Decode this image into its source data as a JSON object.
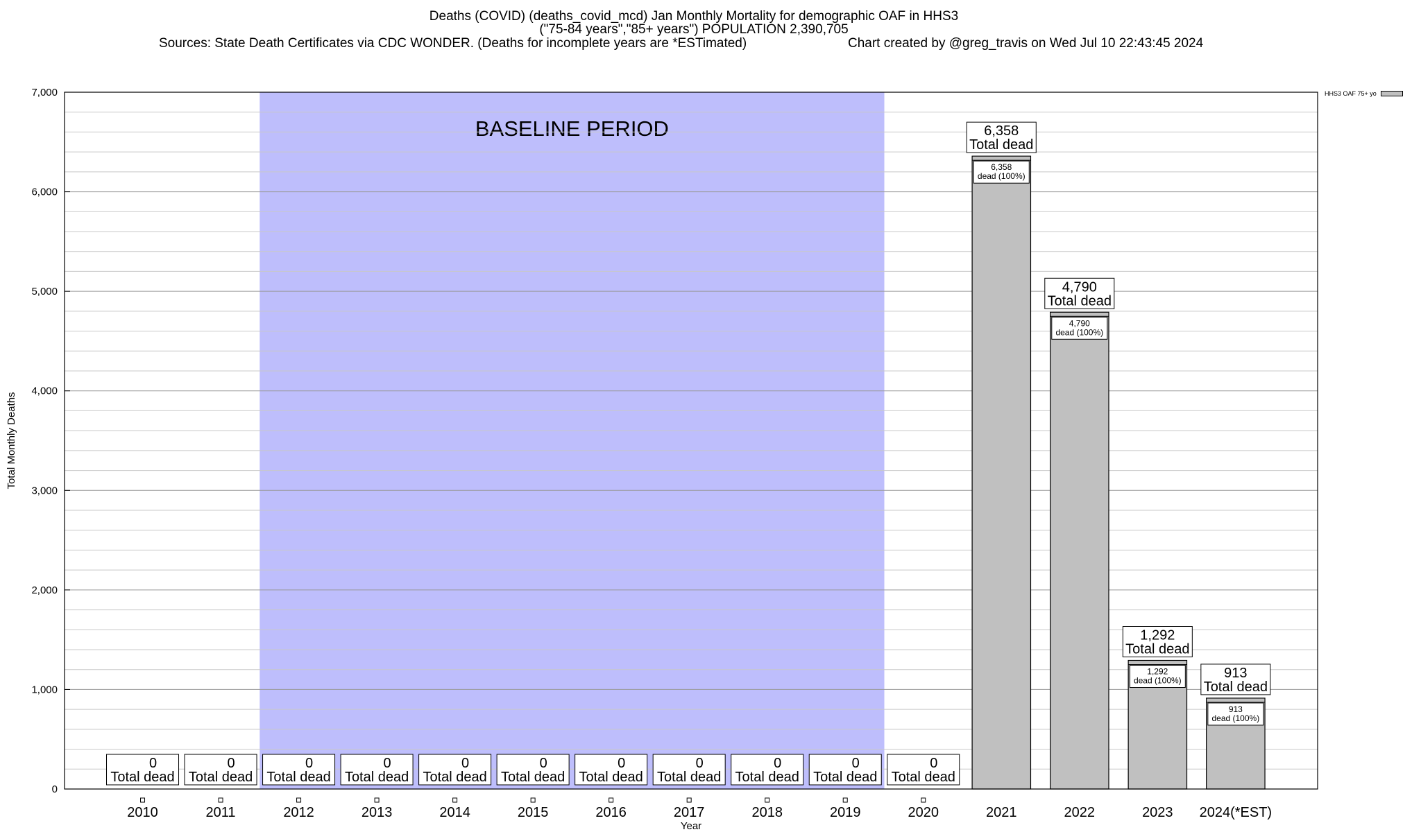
{
  "chart_data": {
    "type": "bar",
    "title_line1": "Deaths (COVID) (deaths_covid_mcd) Jan Monthly Mortality for demographic OAF in HHS3",
    "title_line2": "(\"75-84 years\",\"85+ years\") POPULATION 2,390,705",
    "sources": "Sources: State Death Certificates via CDC WONDER. (Deaths for incomplete years are *ESTimated)",
    "credit": "Chart created by @greg_travis on Wed Jul 10 22:43:45 2024",
    "xlabel": "Year",
    "ylabel": "Total Monthly Deaths",
    "ylim": [
      0,
      7000
    ],
    "yticks": [
      0,
      1000,
      2000,
      3000,
      4000,
      5000,
      6000,
      7000
    ],
    "ytick_labels": [
      "0",
      "1,000",
      "2,000",
      "3,000",
      "4,000",
      "5,000",
      "6,000",
      "7,000"
    ],
    "categories": [
      "2010",
      "2011",
      "2012",
      "2013",
      "2014",
      "2015",
      "2016",
      "2017",
      "2018",
      "2019",
      "2020",
      "2021",
      "2022",
      "2023",
      "2024(*EST)"
    ],
    "series": [
      {
        "name": "HHS3 OAF 75+ yo",
        "color": "#c0c0c0",
        "values": [
          0,
          0,
          0,
          0,
          0,
          0,
          0,
          0,
          0,
          0,
          0,
          6358,
          4790,
          1292,
          913
        ]
      }
    ],
    "total_labels": [
      "0",
      "0",
      "0",
      "0",
      "0",
      "0",
      "0",
      "0",
      "0",
      "0",
      "0",
      "6,358",
      "4,790",
      "1,292",
      "913"
    ],
    "total_suffix": "Total dead",
    "inner_labels": [
      "",
      "",
      "",
      "",
      "",
      "",
      "",
      "",
      "",
      "",
      "",
      "6,358",
      "4,790",
      "1,292",
      "913"
    ],
    "inner_suffix": "dead (100%)",
    "baseline": {
      "label": "BASELINE PERIOD",
      "start": "2012",
      "end": "2019",
      "color": "#bebefc"
    },
    "grid": true,
    "legend_position": "top-right"
  }
}
